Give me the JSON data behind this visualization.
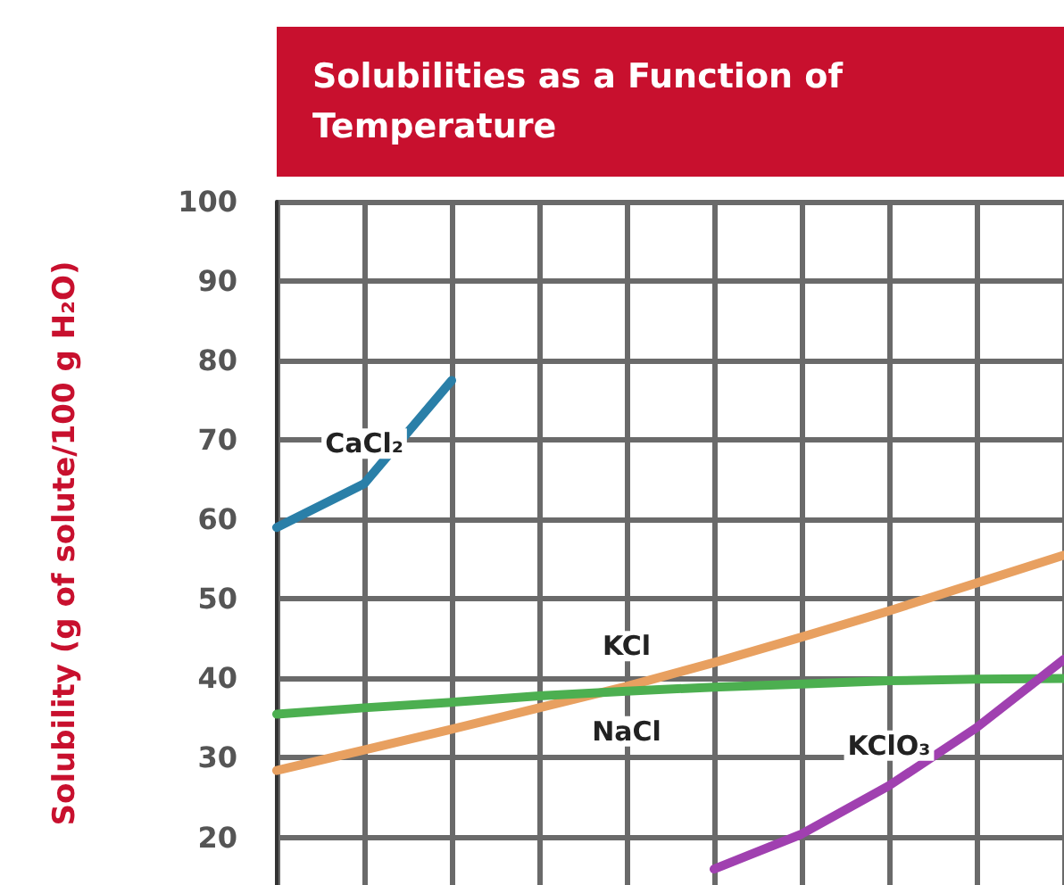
{
  "chart_data": {
    "type": "line",
    "title": "Solubilities as a Function of Temperature",
    "ylabel": "Solubility (g of solute/100 g H₂O)",
    "categories": [
      null,
      null,
      null,
      null,
      null,
      null,
      null,
      null,
      null,
      null
    ],
    "ylim": [
      14,
      100
    ],
    "yticks": [
      20,
      30,
      40,
      50,
      60,
      70,
      80,
      90,
      100
    ],
    "grid": true,
    "tick_labels": "y",
    "marker": "none",
    "line_style": "solid",
    "series": [
      {
        "name": "CaCl₂",
        "color": "#2a7fa8",
        "values": [
          59,
          64.5,
          77.5,
          null,
          null,
          null,
          null,
          null,
          null,
          null
        ]
      },
      {
        "name": "KCl",
        "color": "#e8a060",
        "values": [
          28.4,
          31,
          33.6,
          36.3,
          39,
          42,
          45.2,
          48.5,
          52,
          55.5
        ]
      },
      {
        "name": "NaCl",
        "color": "#4caf50",
        "values": [
          35.5,
          36.3,
          37,
          37.8,
          38.4,
          38.9,
          39.3,
          39.7,
          39.9,
          40
        ]
      },
      {
        "name": "KClO₃",
        "color": "#a040b0",
        "values": [
          null,
          null,
          null,
          null,
          null,
          16,
          20.4,
          26.5,
          33.8,
          42.4
        ]
      }
    ]
  }
}
